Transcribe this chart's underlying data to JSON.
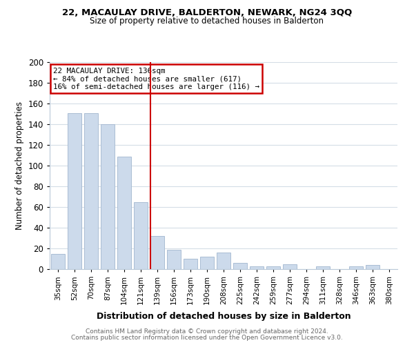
{
  "title1": "22, MACAULAY DRIVE, BALDERTON, NEWARK, NG24 3QQ",
  "title2": "Size of property relative to detached houses in Balderton",
  "xlabel": "Distribution of detached houses by size in Balderton",
  "ylabel": "Number of detached properties",
  "footer1": "Contains HM Land Registry data © Crown copyright and database right 2024.",
  "footer2": "Contains public sector information licensed under the Open Government Licence v3.0.",
  "bar_labels": [
    "35sqm",
    "52sqm",
    "70sqm",
    "87sqm",
    "104sqm",
    "121sqm",
    "139sqm",
    "156sqm",
    "173sqm",
    "190sqm",
    "208sqm",
    "225sqm",
    "242sqm",
    "259sqm",
    "277sqm",
    "294sqm",
    "311sqm",
    "328sqm",
    "346sqm",
    "363sqm",
    "380sqm"
  ],
  "bar_values": [
    15,
    151,
    151,
    140,
    109,
    65,
    32,
    19,
    10,
    12,
    16,
    6,
    3,
    3,
    5,
    0,
    3,
    0,
    3,
    4,
    0
  ],
  "bar_color": "#ccdaeb",
  "bar_edge_color": "#aabdd4",
  "highlight_index": 6,
  "highlight_line_color": "#cc0000",
  "annotation_title": "22 MACAULAY DRIVE: 136sqm",
  "annotation_line1": "← 84% of detached houses are smaller (617)",
  "annotation_line2": "16% of semi-detached houses are larger (116) →",
  "annotation_box_edge_color": "#cc0000",
  "ylim": [
    0,
    200
  ],
  "yticks": [
    0,
    20,
    40,
    60,
    80,
    100,
    120,
    140,
    160,
    180,
    200
  ],
  "background_color": "#ffffff",
  "grid_color": "#d4dde6"
}
